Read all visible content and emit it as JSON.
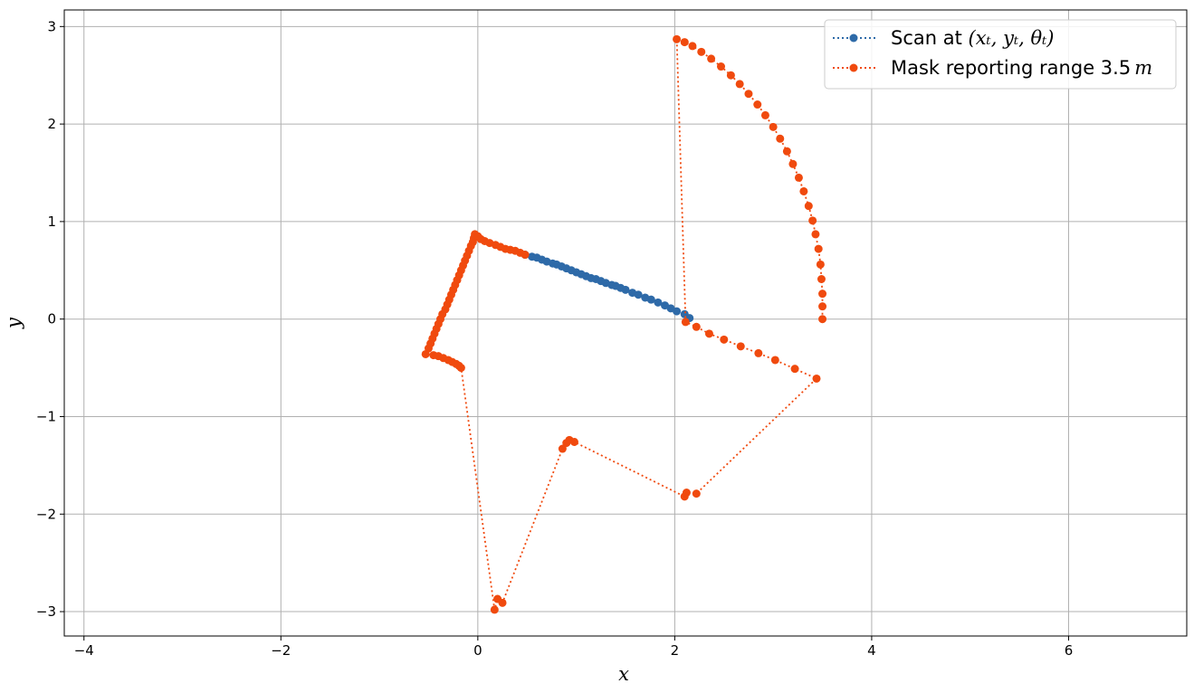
{
  "chart_data": {
    "type": "scatter",
    "xlabel": "x",
    "ylabel": "y",
    "xlim": [
      -4.2,
      7.2
    ],
    "ylim": [
      -3.25,
      3.17
    ],
    "xticks": [
      -4,
      -2,
      0,
      2,
      4,
      6
    ],
    "yticks": [
      -3,
      -2,
      -1,
      0,
      1,
      2,
      3
    ],
    "xtick_labels": [
      "−4",
      "−2",
      "0",
      "2",
      "4",
      "6"
    ],
    "ytick_labels": [
      "−3",
      "−2",
      "−1",
      "0",
      "1",
      "2",
      "3"
    ],
    "grid": true,
    "legend_position": "top-right",
    "legend": [
      {
        "prefix": "Scan at ",
        "math": "(xₜ, yₜ, θₜ)",
        "suffix": ""
      },
      {
        "prefix": "Mask reporting range 3.5",
        "math": "m",
        "suffix": ""
      }
    ],
    "series": [
      {
        "color": "#2e6aa8",
        "linestyle": "dotted",
        "marker": "circle",
        "points": [
          [
            0.48,
            0.66
          ],
          [
            0.55,
            0.64
          ],
          [
            0.6,
            0.63
          ],
          [
            0.65,
            0.61
          ],
          [
            0.7,
            0.59
          ],
          [
            0.76,
            0.57
          ],
          [
            0.8,
            0.56
          ],
          [
            0.85,
            0.54
          ],
          [
            0.9,
            0.52
          ],
          [
            0.95,
            0.5
          ],
          [
            1.0,
            0.48
          ],
          [
            1.05,
            0.46
          ],
          [
            1.1,
            0.44
          ],
          [
            1.15,
            0.42
          ],
          [
            1.2,
            0.41
          ],
          [
            1.25,
            0.39
          ],
          [
            1.3,
            0.37
          ],
          [
            1.36,
            0.35
          ],
          [
            1.4,
            0.34
          ],
          [
            1.45,
            0.32
          ],
          [
            1.5,
            0.3
          ],
          [
            1.57,
            0.27
          ],
          [
            1.63,
            0.25
          ],
          [
            1.7,
            0.22
          ],
          [
            1.76,
            0.2
          ],
          [
            1.83,
            0.17
          ],
          [
            1.9,
            0.14
          ],
          [
            1.96,
            0.11
          ],
          [
            2.02,
            0.08
          ],
          [
            2.1,
            0.05
          ],
          [
            2.15,
            0.01
          ]
        ]
      },
      {
        "color": "#f04a0e",
        "linestyle": "dotted",
        "marker": "circle",
        "points": [
          [
            0.48,
            0.66
          ],
          [
            0.43,
            0.68
          ],
          [
            0.38,
            0.7
          ],
          [
            0.33,
            0.71
          ],
          [
            0.28,
            0.72
          ],
          [
            0.23,
            0.74
          ],
          [
            0.18,
            0.76
          ],
          [
            0.12,
            0.78
          ],
          [
            0.07,
            0.8
          ],
          [
            0.03,
            0.82
          ],
          [
            0.0,
            0.85
          ],
          [
            -0.03,
            0.87
          ],
          [
            -0.04,
            0.83
          ],
          [
            -0.05,
            0.79
          ],
          [
            -0.07,
            0.75
          ],
          [
            -0.09,
            0.7
          ],
          [
            -0.11,
            0.65
          ],
          [
            -0.13,
            0.6
          ],
          [
            -0.15,
            0.55
          ],
          [
            -0.17,
            0.5
          ],
          [
            -0.19,
            0.45
          ],
          [
            -0.21,
            0.4
          ],
          [
            -0.23,
            0.35
          ],
          [
            -0.25,
            0.3
          ],
          [
            -0.27,
            0.25
          ],
          [
            -0.29,
            0.2
          ],
          [
            -0.31,
            0.15
          ],
          [
            -0.33,
            0.1
          ],
          [
            -0.36,
            0.05
          ],
          [
            -0.38,
            0.0
          ],
          [
            -0.4,
            -0.05
          ],
          [
            -0.42,
            -0.1
          ],
          [
            -0.44,
            -0.15
          ],
          [
            -0.46,
            -0.2
          ],
          [
            -0.48,
            -0.25
          ],
          [
            -0.5,
            -0.3
          ],
          [
            -0.53,
            -0.36
          ],
          [
            -0.45,
            -0.37
          ],
          [
            -0.4,
            -0.38
          ],
          [
            -0.35,
            -0.4
          ],
          [
            -0.3,
            -0.42
          ],
          [
            -0.26,
            -0.44
          ],
          [
            -0.22,
            -0.46
          ],
          [
            -0.19,
            -0.48
          ],
          [
            -0.17,
            -0.5
          ],
          [
            0.17,
            -2.98
          ],
          [
            0.2,
            -2.87
          ],
          [
            0.25,
            -2.91
          ],
          [
            0.86,
            -1.33
          ],
          [
            0.9,
            -1.27
          ],
          [
            0.93,
            -1.24
          ],
          [
            0.98,
            -1.26
          ],
          [
            2.1,
            -1.82
          ],
          [
            2.12,
            -1.78
          ],
          [
            2.22,
            -1.79
          ],
          [
            3.44,
            -0.61
          ],
          [
            3.22,
            -0.51
          ],
          [
            3.02,
            -0.42
          ],
          [
            2.85,
            -0.35
          ],
          [
            2.67,
            -0.28
          ],
          [
            2.5,
            -0.21
          ],
          [
            2.35,
            -0.15
          ],
          [
            2.22,
            -0.08
          ],
          [
            2.11,
            -0.03
          ],
          [
            2.02,
            2.87
          ],
          [
            2.1,
            2.84
          ],
          [
            2.18,
            2.8
          ],
          [
            2.27,
            2.74
          ],
          [
            2.37,
            2.67
          ],
          [
            2.47,
            2.59
          ],
          [
            2.57,
            2.5
          ],
          [
            2.66,
            2.41
          ],
          [
            2.75,
            2.31
          ],
          [
            2.84,
            2.2
          ],
          [
            2.92,
            2.09
          ],
          [
            3.0,
            1.97
          ],
          [
            3.07,
            1.85
          ],
          [
            3.14,
            1.72
          ],
          [
            3.2,
            1.59
          ],
          [
            3.26,
            1.45
          ],
          [
            3.31,
            1.31
          ],
          [
            3.36,
            1.16
          ],
          [
            3.4,
            1.01
          ],
          [
            3.43,
            0.87
          ],
          [
            3.46,
            0.72
          ],
          [
            3.48,
            0.56
          ],
          [
            3.49,
            0.41
          ],
          [
            3.5,
            0.26
          ],
          [
            3.5,
            0.13
          ],
          [
            3.5,
            0.0
          ]
        ]
      }
    ]
  }
}
